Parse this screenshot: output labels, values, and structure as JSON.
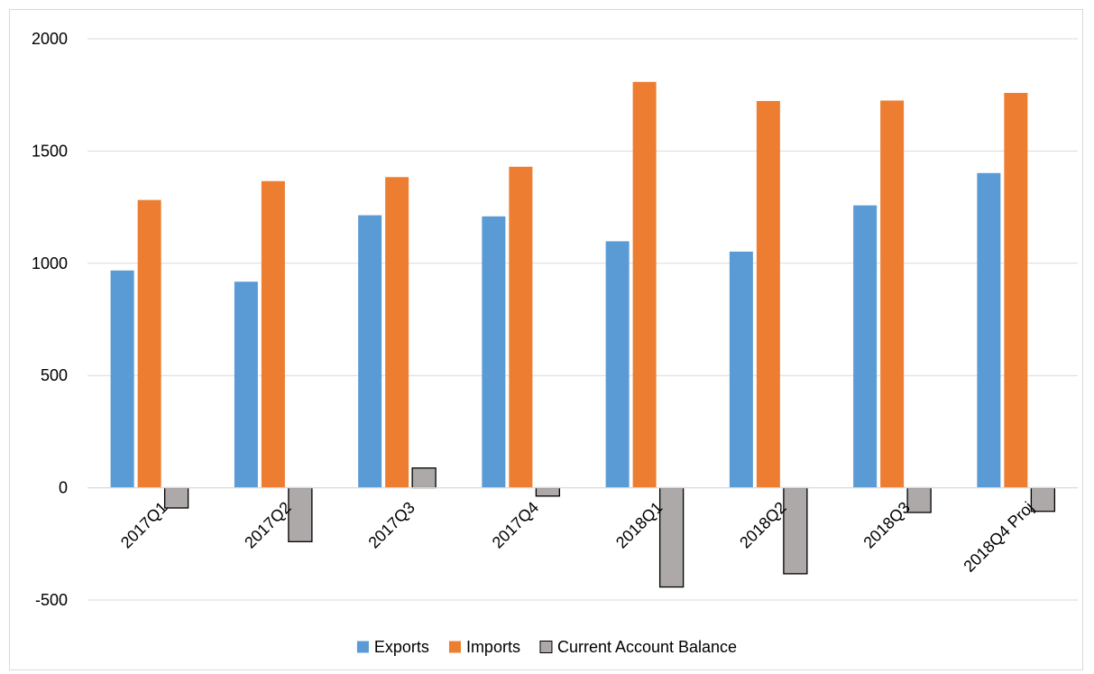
{
  "chart_data": {
    "type": "bar",
    "categories": [
      "2017Q1",
      "2017Q2",
      "2017Q3",
      "2017Q4",
      "2018Q1",
      "2018Q2",
      "2018Q3",
      "2018Q4 Proj"
    ],
    "series": [
      {
        "name": "Exports",
        "color": "#5B9BD5",
        "values": [
          968,
          918,
          1214,
          1209,
          1098,
          1052,
          1258,
          1402
        ]
      },
      {
        "name": "Imports",
        "color": "#ED7D31",
        "values": [
          1282,
          1366,
          1384,
          1430,
          1808,
          1723,
          1725,
          1759
        ]
      },
      {
        "name": "Current Account Balance",
        "color": "#ADA9A8",
        "outline": "#000000",
        "values": [
          -90,
          -240,
          88,
          -37,
          -442,
          -383,
          -110,
          -105
        ]
      }
    ],
    "ylim": [
      -500,
      2000
    ],
    "yticks": [
      "2000",
      "1500",
      "1000",
      "500",
      "0",
      "-500"
    ],
    "ytick_values": [
      2000,
      1500,
      1000,
      500,
      0,
      -500
    ],
    "grid": true,
    "legend_position": "bottom",
    "title": "",
    "xlabel": "",
    "ylabel": ""
  }
}
